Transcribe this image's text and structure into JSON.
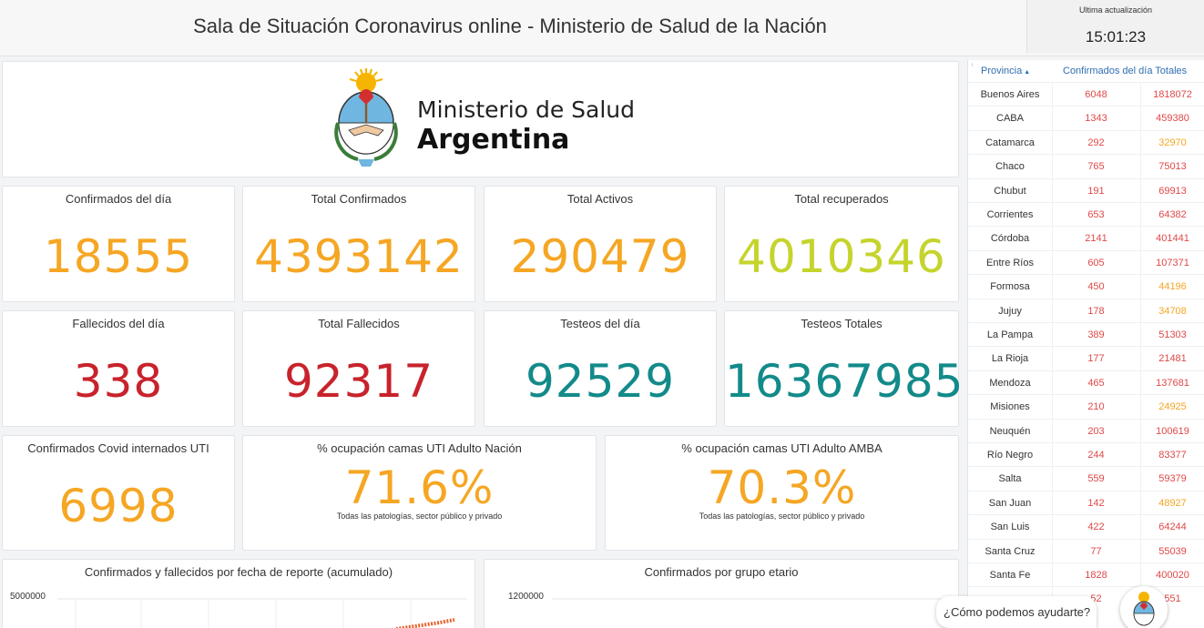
{
  "header": {
    "title": "Sala de Situación Coronavirus online - Ministerio de Salud de la Nación",
    "update_label": "Ultima actualización",
    "update_time": "15:01:23"
  },
  "logo": {
    "line1": "Ministerio de Salud",
    "line2": "Argentina"
  },
  "colors": {
    "orange": "#f5a623",
    "yellow_green": "#c5d42c",
    "red": "#c8232c",
    "teal": "#138a8a",
    "link_blue": "#2f6fb0"
  },
  "kpis": [
    {
      "title": "Confirmados del día",
      "value": "18555",
      "color": "#f5a623"
    },
    {
      "title": "Total Confirmados",
      "value": "4393142",
      "color": "#f5a623"
    },
    {
      "title": "Total Activos",
      "value": "290479",
      "color": "#f5a623"
    },
    {
      "title": "Total recuperados",
      "value": "4010346",
      "color": "#c5d42c"
    },
    {
      "title": "Fallecidos del día",
      "value": "338",
      "color": "#c8232c"
    },
    {
      "title": "Total Fallecidos",
      "value": "92317",
      "color": "#c8232c"
    },
    {
      "title": "Testeos del día",
      "value": "92529",
      "color": "#138a8a"
    },
    {
      "title": "Testeos Totales",
      "value": "16367985",
      "color": "#138a8a"
    },
    {
      "title": "Confirmados Covid internados UTI",
      "value": "6998",
      "color": "#f5a623"
    },
    {
      "title": "% ocupación camas UTI Adulto Nación",
      "value": "71.6%",
      "color": "#f5a623",
      "sub": "Todas las patologías, sector público y privado"
    },
    {
      "title": "% ocupación camas UTI Adulto AMBA",
      "value": "70.3%",
      "color": "#f5a623",
      "sub": "Todas las patologías, sector público y privado"
    }
  ],
  "charts": {
    "cumulative": {
      "title": "Confirmados y fallecidos por fecha de reporte (acumulado)",
      "y_tick": "5000000"
    },
    "age": {
      "title": "Confirmados por grupo etario",
      "y_tick": "1200000"
    }
  },
  "province_table": {
    "col_province": "Provincia",
    "col_header": "Confirmados del día Totales",
    "rows": [
      {
        "name": "Buenos Aires",
        "day": "6048",
        "total": "1818072",
        "total_color": "#e04848"
      },
      {
        "name": "CABA",
        "day": "1343",
        "total": "459380",
        "total_color": "#e04848"
      },
      {
        "name": "Catamarca",
        "day": "292",
        "total": "32970",
        "total_color": "#f5a623"
      },
      {
        "name": "Chaco",
        "day": "765",
        "total": "75013",
        "total_color": "#e04848"
      },
      {
        "name": "Chubut",
        "day": "191",
        "total": "69913",
        "total_color": "#e04848"
      },
      {
        "name": "Corrientes",
        "day": "653",
        "total": "64382",
        "total_color": "#e04848"
      },
      {
        "name": "Córdoba",
        "day": "2141",
        "total": "401441",
        "total_color": "#e04848"
      },
      {
        "name": "Entre Ríos",
        "day": "605",
        "total": "107371",
        "total_color": "#e04848"
      },
      {
        "name": "Formosa",
        "day": "450",
        "total": "44196",
        "total_color": "#f5a623"
      },
      {
        "name": "Jujuy",
        "day": "178",
        "total": "34708",
        "total_color": "#f5a623"
      },
      {
        "name": "La Pampa",
        "day": "389",
        "total": "51303",
        "total_color": "#e04848"
      },
      {
        "name": "La Rioja",
        "day": "177",
        "total": "21481",
        "total_color": "#e04848"
      },
      {
        "name": "Mendoza",
        "day": "465",
        "total": "137681",
        "total_color": "#e04848"
      },
      {
        "name": "Misiones",
        "day": "210",
        "total": "24925",
        "total_color": "#f5a623"
      },
      {
        "name": "Neuquén",
        "day": "203",
        "total": "100619",
        "total_color": "#e04848"
      },
      {
        "name": "Río Negro",
        "day": "244",
        "total": "83377",
        "total_color": "#e04848"
      },
      {
        "name": "Salta",
        "day": "559",
        "total": "59379",
        "total_color": "#e04848"
      },
      {
        "name": "San Juan",
        "day": "142",
        "total": "48927",
        "total_color": "#f5a623"
      },
      {
        "name": "San Luis",
        "day": "422",
        "total": "64244",
        "total_color": "#e04848"
      },
      {
        "name": "Santa Cruz",
        "day": "77",
        "total": "55039",
        "total_color": "#e04848"
      },
      {
        "name": "Santa Fe",
        "day": "1828",
        "total": "400020",
        "total_color": "#e04848"
      },
      {
        "name": "",
        "day": "52",
        "total": "551",
        "total_color": "#e04848"
      }
    ]
  },
  "chat": {
    "prompt": "¿Cómo podemos ayudarte?"
  }
}
